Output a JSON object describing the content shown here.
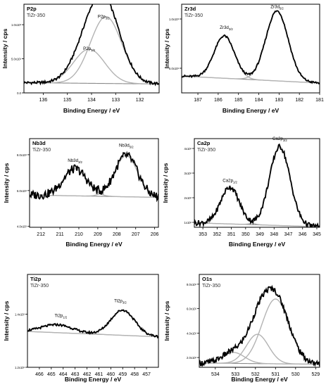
{
  "figure": {
    "description_free": true
  },
  "chart_data": [
    {
      "type": "line",
      "panel_id": "p2p",
      "title": "P2p",
      "subtitle": "TiZr-350",
      "xlabel": "Binding Energy / eV",
      "ylabel": "Intensity / cps",
      "xlim": [
        136.8,
        131.2
      ],
      "ylim": [
        0,
        1.3
      ],
      "xticks": [
        136,
        135,
        134,
        133,
        132
      ],
      "yticks": [
        {
          "v": 0.0,
          "label": "0.0"
        },
        {
          "v": 0.5,
          "label": "5.0x10²"
        },
        {
          "v": 1.0,
          "label": "1.0x10³"
        }
      ],
      "baseline": {
        "points": [
          [
            136.8,
            0.15
          ],
          [
            131.2,
            0.13
          ]
        ]
      },
      "peaks": [
        {
          "label": "P2p₃/₂",
          "label_main": "P2p",
          "label_sub": "3/2",
          "center": 133.4,
          "amp": 0.98,
          "sigma": 0.65,
          "label_at": [
            133.5,
            1.1
          ]
        },
        {
          "label": "P2p₁/₂",
          "label_main": "P2p",
          "label_sub": "1/2",
          "center": 134.1,
          "amp": 0.5,
          "sigma": 0.65,
          "label_at": [
            134.1,
            0.63
          ]
        }
      ],
      "envelope_noise": 0.015
    },
    {
      "type": "line",
      "panel_id": "zr3d",
      "title": "Zr3d",
      "subtitle": "TiZr-350",
      "xlabel": "Binding Energy / eV",
      "ylabel": "Intensity / cps",
      "xlim": [
        187.8,
        181.0
      ],
      "ylim": [
        0.25,
        1.15
      ],
      "xticks": [
        187,
        186,
        185,
        184,
        183,
        182,
        181
      ],
      "yticks": [
        {
          "v": 0.5,
          "label": "5.0x10²"
        },
        {
          "v": 1.0,
          "label": "1.0x10³"
        }
      ],
      "baseline": {
        "points": [
          [
            187.8,
            0.42
          ],
          [
            181.0,
            0.35
          ]
        ]
      },
      "peaks": [
        {
          "label": "Zr3d₃/₂",
          "label_main": "Zr3d",
          "label_sub": "3/2",
          "center": 185.7,
          "amp": 0.43,
          "sigma": 0.5,
          "label_at": [
            185.6,
            0.9
          ]
        },
        {
          "label": "Zr3d₅/₂",
          "label_main": "Zr3d",
          "label_sub": "5/2",
          "center": 183.1,
          "amp": 0.71,
          "sigma": 0.55,
          "label_at": [
            183.1,
            1.11
          ]
        }
      ],
      "envelope_noise": 0.012
    },
    {
      "type": "line",
      "panel_id": "nb3d",
      "title": "Nb3d",
      "subtitle": "TiZr-350",
      "xlabel": "Binding Energy / eV",
      "ylabel": "Intensity / cps",
      "xlim": [
        212.6,
        205.8
      ],
      "ylim": [
        3.95,
        8.9
      ],
      "xticks": [
        212,
        211,
        210,
        209,
        208,
        207,
        206
      ],
      "yticks": [
        {
          "v": 4.0,
          "label": "4.0x10²"
        },
        {
          "v": 6.0,
          "label": "6.0x10²"
        },
        {
          "v": 8.0,
          "label": "8.0x10²"
        }
      ],
      "baseline": {
        "points": [
          [
            212.6,
            5.75
          ],
          [
            205.8,
            5.62
          ]
        ]
      },
      "peaks": [
        {
          "label": "Nb3d₃/₂",
          "label_main": "Nb3d",
          "label_sub": "3/2",
          "center": 210.2,
          "amp": 1.5,
          "sigma": 0.62,
          "label_at": [
            210.2,
            7.6
          ]
        },
        {
          "label": "Nb3d₅/₂",
          "label_main": "Nb3d",
          "label_sub": "5/2",
          "center": 207.5,
          "amp": 2.3,
          "sigma": 0.6,
          "label_at": [
            207.5,
            8.45
          ]
        }
      ],
      "envelope_noise": 0.05
    },
    {
      "type": "line",
      "panel_id": "ca2p",
      "title": "Ca2p",
      "subtitle": "TiZr-350",
      "xlabel": "Binding Energy / eV",
      "ylabel": "Intensity / cps",
      "xlim": [
        353.6,
        344.8
      ],
      "ylim": [
        0.8,
        4.4
      ],
      "xticks": [
        353,
        352,
        351,
        350,
        349,
        348,
        347,
        346,
        345
      ],
      "yticks": [
        {
          "v": 1.0,
          "label": "1x10²"
        },
        {
          "v": 2.0,
          "label": "2x10²"
        },
        {
          "v": 3.0,
          "label": "3x10²"
        },
        {
          "v": 4.0,
          "label": "4x10²"
        }
      ],
      "baseline": {
        "points": [
          [
            353.6,
            0.98
          ],
          [
            344.8,
            0.82
          ]
        ]
      },
      "peaks": [
        {
          "label": "Ca2p₁/₂",
          "label_main": "Ca2p",
          "label_sub": "1/2",
          "center": 351.1,
          "amp": 1.5,
          "sigma": 0.65,
          "label_at": [
            351.1,
            2.65
          ]
        },
        {
          "label": "Ca2p₃/₂",
          "label_main": "Ca2p",
          "label_sub": "3/2",
          "center": 347.6,
          "amp": 3.2,
          "sigma": 0.72,
          "label_at": [
            347.6,
            4.35
          ]
        }
      ],
      "envelope_noise": 0.03
    },
    {
      "type": "line",
      "panel_id": "ti2p",
      "title": "Ti2p",
      "subtitle": "TiZr-350",
      "xlabel": "Binding Energy / eV",
      "ylabel": "Intensity / cps",
      "xlim": [
        467.0,
        456.0
      ],
      "ylim": [
        1.2,
        1.55
      ],
      "xticks": [
        466,
        465,
        464,
        463,
        462,
        461,
        460,
        459,
        458,
        457
      ],
      "yticks": [
        {
          "v": 1.2,
          "label": "1.2x10²"
        },
        {
          "v": 1.4,
          "label": "1.4x10²"
        }
      ],
      "baseline": {
        "points": [
          [
            467.0,
            1.335
          ],
          [
            456.0,
            1.315
          ]
        ]
      },
      "peaks": [
        {
          "label": "Ti2p₁/₂",
          "label_main": "Ti2p",
          "label_sub": "1/2",
          "center": 464.5,
          "amp": 0.03,
          "sigma": 1.3,
          "label_at": [
            464.2,
            1.39
          ]
        },
        {
          "label": "Ti2p₃/₂",
          "label_main": "Ti2p",
          "label_sub": "3/2",
          "center": 459.0,
          "amp": 0.095,
          "sigma": 1.0,
          "label_at": [
            459.2,
            1.445
          ]
        }
      ],
      "envelope_noise": 0.012
    },
    {
      "type": "line",
      "panel_id": "o1s",
      "title": "O1s",
      "subtitle": "TiZr-350",
      "xlabel": "Binding Energy / eV",
      "ylabel": "Intensity / cps",
      "xlim": [
        534.8,
        528.8
      ],
      "ylim": [
        1.2,
        8.8
      ],
      "xticks": [
        534,
        533,
        532,
        531,
        530,
        529
      ],
      "yticks": [
        {
          "v": 2.0,
          "label": "2.0x10²"
        },
        {
          "v": 4.0,
          "label": "4.0x10²"
        },
        {
          "v": 6.0,
          "label": "6.0x10²"
        },
        {
          "v": 8.0,
          "label": "8.0x10²"
        }
      ],
      "baseline": {
        "points": [
          [
            534.8,
            1.55
          ],
          [
            528.8,
            1.45
          ]
        ]
      },
      "peaks": [
        {
          "label": "",
          "label_main": "",
          "label_sub": "",
          "center": 533.1,
          "amp": 0.9,
          "sigma": 0.55
        },
        {
          "label": "",
          "label_main": "",
          "label_sub": "",
          "center": 531.9,
          "amp": 2.4,
          "sigma": 0.55
        },
        {
          "label": "",
          "label_main": "",
          "label_sub": "",
          "center": 531.0,
          "amp": 5.3,
          "sigma": 0.68
        }
      ],
      "envelope_noise": 0.03
    }
  ],
  "colors": {
    "envelope": "#000000",
    "component": "#b3b3b3",
    "baseline": "#8a8a8a",
    "axis": "#000000",
    "text": "#000000"
  }
}
